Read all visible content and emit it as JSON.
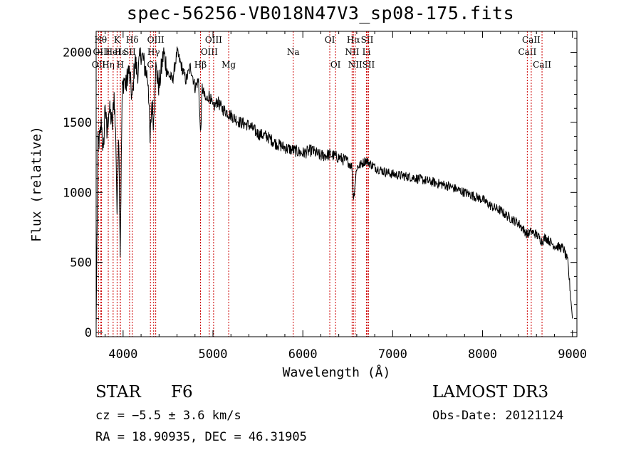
{
  "chart_data": {
    "type": "line",
    "title": "spec-56256-VB018N47V3_sp08-175.fits",
    "xlabel": "Wavelength (Å)",
    "ylabel": "Flux (relative)",
    "xlim": [
      3700,
      9050
    ],
    "ylim": [
      -30,
      2150
    ],
    "xticks": [
      4000,
      5000,
      6000,
      7000,
      8000,
      9000
    ],
    "yticks": [
      0,
      500,
      1000,
      1500,
      2000
    ],
    "series": [
      {
        "name": "flux",
        "x": [
          3700,
          3720,
          3740,
          3760,
          3780,
          3800,
          3820,
          3840,
          3860,
          3880,
          3900,
          3920,
          3933,
          3950,
          3968,
          3990,
          4010,
          4030,
          4060,
          4080,
          4102,
          4130,
          4160,
          4200,
          4240,
          4280,
          4300,
          4320,
          4340,
          4360,
          4400,
          4450,
          4500,
          4550,
          4600,
          4650,
          4700,
          4750,
          4800,
          4840,
          4861,
          4880,
          4920,
          4960,
          5000,
          5050,
          5100,
          5200,
          5300,
          5400,
          5500,
          5600,
          5700,
          5800,
          5900,
          6000,
          6100,
          6200,
          6300,
          6400,
          6500,
          6550,
          6563,
          6600,
          6650,
          6700,
          6800,
          6900,
          7000,
          7200,
          7400,
          7600,
          7800,
          8000,
          8100,
          8200,
          8300,
          8400,
          8498,
          8542,
          8600,
          8662,
          8700,
          8800,
          8900,
          8950,
          9000
        ],
        "y": [
          50,
          1350,
          1380,
          1500,
          1250,
          1650,
          1400,
          1600,
          1550,
          1480,
          1700,
          1350,
          820,
          1500,
          580,
          1720,
          1820,
          1750,
          1880,
          1800,
          1650,
          1950,
          1850,
          2000,
          1900,
          1800,
          1350,
          1650,
          1500,
          1900,
          1750,
          2000,
          1850,
          1800,
          2000,
          1900,
          1800,
          1900,
          1750,
          1800,
          1400,
          1750,
          1650,
          1700,
          1600,
          1650,
          1600,
          1550,
          1500,
          1480,
          1420,
          1400,
          1350,
          1320,
          1300,
          1280,
          1300,
          1260,
          1270,
          1250,
          1220,
          1180,
          950,
          1180,
          1200,
          1230,
          1180,
          1150,
          1130,
          1110,
          1080,
          1050,
          1000,
          950,
          900,
          870,
          820,
          780,
          700,
          720,
          700,
          650,
          680,
          620,
          600,
          500,
          100
        ]
      }
    ],
    "lines": [
      {
        "label": "OII",
        "x": 3727,
        "row": 2
      },
      {
        "label": "Hθ",
        "x": 3750,
        "row": 0
      },
      {
        "label": "OIII",
        "x": 3760,
        "row": 1
      },
      {
        "label": "Hη",
        "x": 3835,
        "row": 2
      },
      {
        "label": "HeI",
        "x": 3889,
        "row": 1
      },
      {
        "label": "K",
        "x": 3933,
        "row": 0
      },
      {
        "label": "H",
        "x": 3968,
        "row": 2
      },
      {
        "label": "Hε",
        "x": 3970,
        "row": 1
      },
      {
        "label": "Hδ",
        "x": 4102,
        "row": 0
      },
      {
        "label": "SII",
        "x": 4072,
        "row": 1
      },
      {
        "label": "G",
        "x": 4304,
        "row": 2
      },
      {
        "label": "Hγ",
        "x": 4340,
        "row": 1
      },
      {
        "label": "OIII",
        "x": 4363,
        "row": 0
      },
      {
        "label": "Hβ",
        "x": 4861,
        "row": 2
      },
      {
        "label": "OIII",
        "x": 4959,
        "row": 1
      },
      {
        "label": "OIII",
        "x": 5007,
        "row": 0
      },
      {
        "label": "Mg",
        "x": 5175,
        "row": 2
      },
      {
        "label": "Na",
        "x": 5893,
        "row": 1
      },
      {
        "label": "OI",
        "x": 6300,
        "row": 0
      },
      {
        "label": "OI",
        "x": 6364,
        "row": 2
      },
      {
        "label": "NII",
        "x": 6548,
        "row": 1
      },
      {
        "label": "Hα",
        "x": 6563,
        "row": 0
      },
      {
        "label": "NII",
        "x": 6583,
        "row": 2
      },
      {
        "label": "Li",
        "x": 6708,
        "row": 1
      },
      {
        "label": "SII",
        "x": 6716,
        "row": 0
      },
      {
        "label": "SII",
        "x": 6731,
        "row": 2
      },
      {
        "label": "CaII",
        "x": 8498,
        "row": 1
      },
      {
        "label": "CaII",
        "x": 8542,
        "row": 0
      },
      {
        "label": "CaII",
        "x": 8662,
        "row": 2
      }
    ]
  },
  "info": {
    "class": "STAR",
    "subclass": "F6",
    "survey": "LAMOST DR3",
    "cz": "cz = −5.5 ± 3.6 km/s",
    "obs_date": "Obs-Date: 20121124",
    "radec": "RA =  18.90935, DEC =  46.31905"
  }
}
